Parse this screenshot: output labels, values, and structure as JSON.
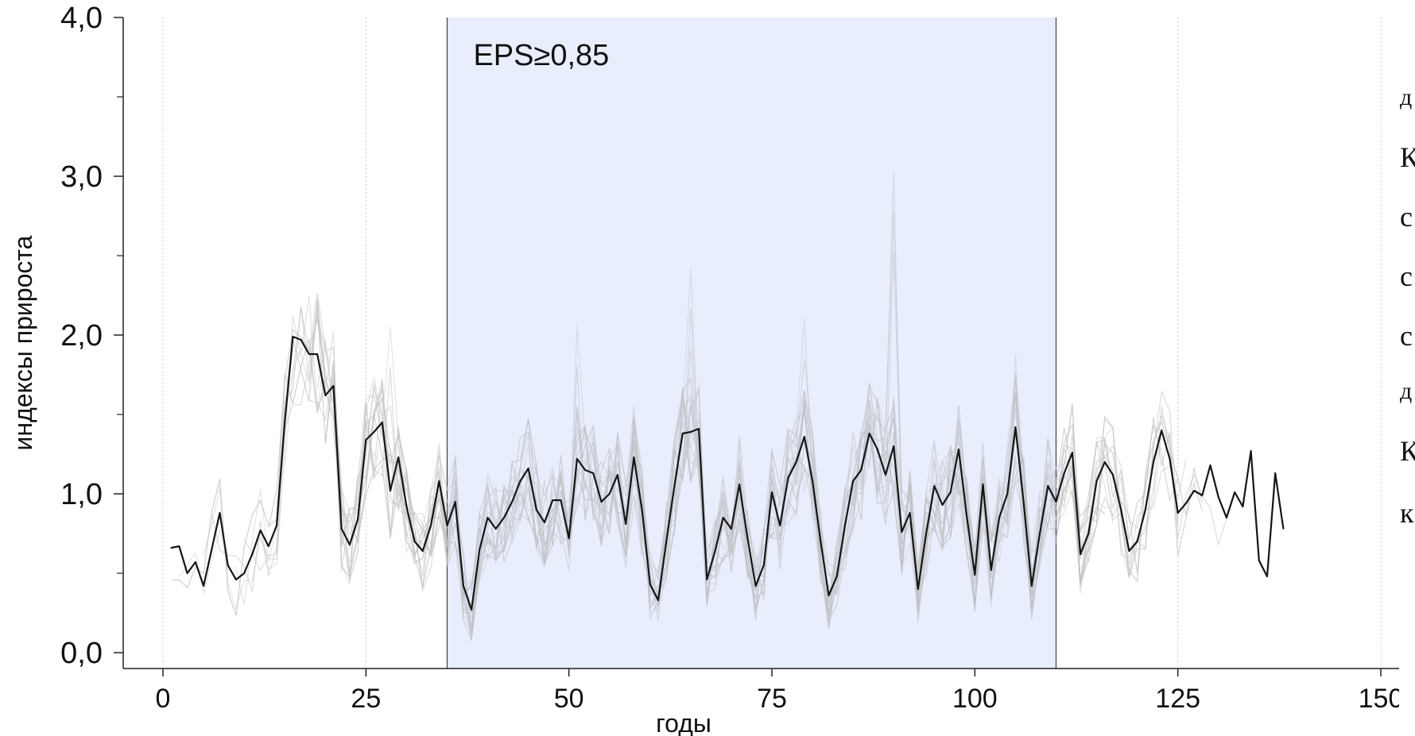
{
  "chart_data": {
    "type": "line",
    "xlabel": "годы",
    "ylabel": "индексы прироста",
    "xlim": [
      -5,
      155
    ],
    "ylim": [
      0,
      4
    ],
    "x_ticks": [
      0,
      25,
      50,
      75,
      100,
      125,
      150
    ],
    "x_tick_labels": [
      "0",
      "25",
      "50",
      "75",
      "100",
      "125",
      "150"
    ],
    "y_major_ticks": [
      0,
      1,
      2,
      3,
      4
    ],
    "y_tick_labels": [
      "0,0",
      "1,0",
      "2,0",
      "3,0",
      "4,0"
    ],
    "y_minor_ticks": [
      0.5,
      1.5,
      2.5,
      3.5
    ],
    "grid": "vertical dotted",
    "highlight_band": {
      "x_from": 35,
      "x_to": 110,
      "label": "EPS≥0,85"
    },
    "colors": {
      "band": "#e8eefc",
      "band_border": "#3a4055",
      "mean": "#151515",
      "individual": "#c0c0c4"
    },
    "series": [
      {
        "role": "mean",
        "x": [
          1,
          2,
          3,
          4,
          5,
          6,
          7,
          8,
          9,
          10,
          11,
          12,
          13,
          14,
          15,
          16,
          17,
          18,
          19,
          20,
          21,
          22,
          23,
          24,
          25,
          26,
          27,
          28,
          29,
          30,
          31,
          32,
          33,
          34,
          35,
          36,
          37,
          38,
          39,
          40,
          41,
          42,
          43,
          44,
          45,
          46,
          47,
          48,
          49,
          50,
          51,
          52,
          53,
          54,
          55,
          56,
          57,
          58,
          59,
          60,
          61,
          62,
          63,
          64,
          65,
          66,
          67,
          68,
          69,
          70,
          71,
          72,
          73,
          74,
          75,
          76,
          77,
          78,
          79,
          80,
          81,
          82,
          83,
          84,
          85,
          86,
          87,
          88,
          89,
          90,
          91,
          92,
          93,
          94,
          95,
          96,
          97,
          98,
          99,
          100,
          101,
          102,
          103,
          104,
          105,
          106,
          107,
          108,
          109,
          110,
          111,
          112,
          113,
          114,
          115,
          116,
          117,
          118,
          119,
          120,
          121,
          122,
          123,
          124,
          125,
          126,
          127,
          128,
          129,
          130,
          131,
          132,
          133,
          134,
          135,
          136,
          137,
          138
        ],
        "y": [
          0.66,
          0.67,
          0.5,
          0.57,
          0.42,
          0.65,
          0.88,
          0.55,
          0.46,
          0.5,
          0.62,
          0.77,
          0.67,
          0.8,
          1.45,
          1.99,
          1.97,
          1.88,
          1.88,
          1.62,
          1.68,
          0.78,
          0.68,
          0.84,
          1.34,
          1.39,
          1.45,
          1.02,
          1.23,
          0.92,
          0.7,
          0.64,
          0.8,
          1.08,
          0.8,
          0.95,
          0.42,
          0.27,
          0.65,
          0.85,
          0.78,
          0.85,
          0.95,
          1.08,
          1.16,
          0.9,
          0.82,
          0.96,
          0.96,
          0.72,
          1.22,
          1.15,
          1.13,
          0.95,
          1.0,
          1.12,
          0.81,
          1.23,
          0.9,
          0.43,
          0.33,
          0.7,
          1.05,
          1.38,
          1.39,
          1.41,
          0.46,
          0.64,
          0.85,
          0.78,
          1.06,
          0.72,
          0.42,
          0.55,
          1.01,
          0.8,
          1.1,
          1.2,
          1.36,
          1.08,
          0.7,
          0.36,
          0.48,
          0.8,
          1.08,
          1.15,
          1.38,
          1.28,
          1.12,
          1.3,
          0.76,
          0.88,
          0.4,
          0.75,
          1.05,
          0.93,
          1.01,
          1.28,
          0.86,
          0.49,
          1.06,
          0.52,
          0.85,
          1.0,
          1.42,
          0.95,
          0.42,
          0.75,
          1.05,
          0.95,
          1.13,
          1.26,
          0.62,
          0.75,
          1.08,
          1.2,
          1.12,
          0.9,
          0.64,
          0.7,
          0.9,
          1.2,
          1.4,
          1.22,
          0.88,
          0.94,
          1.02,
          0.99,
          1.18,
          0.98,
          0.85,
          1.01,
          0.92,
          1.27,
          0.58,
          0.48,
          1.13,
          0.78
        ]
      }
    ],
    "individual_series_x_range": [
      1,
      131
    ],
    "individual_series_spikes": [
      {
        "x": 65,
        "y": 2.42
      },
      {
        "x": 79,
        "y": 2.1
      },
      {
        "x": 90,
        "y": 3.03
      },
      {
        "x": 105,
        "y": 1.88
      },
      {
        "x": 123,
        "y": 2.05
      },
      {
        "x": 28,
        "y": 2.05
      },
      {
        "x": 51,
        "y": 2.06
      }
    ]
  },
  "side_text": {
    "lines": [
      "д",
      "К",
      "с",
      "с",
      "с",
      "д",
      "К",
      "к"
    ]
  }
}
